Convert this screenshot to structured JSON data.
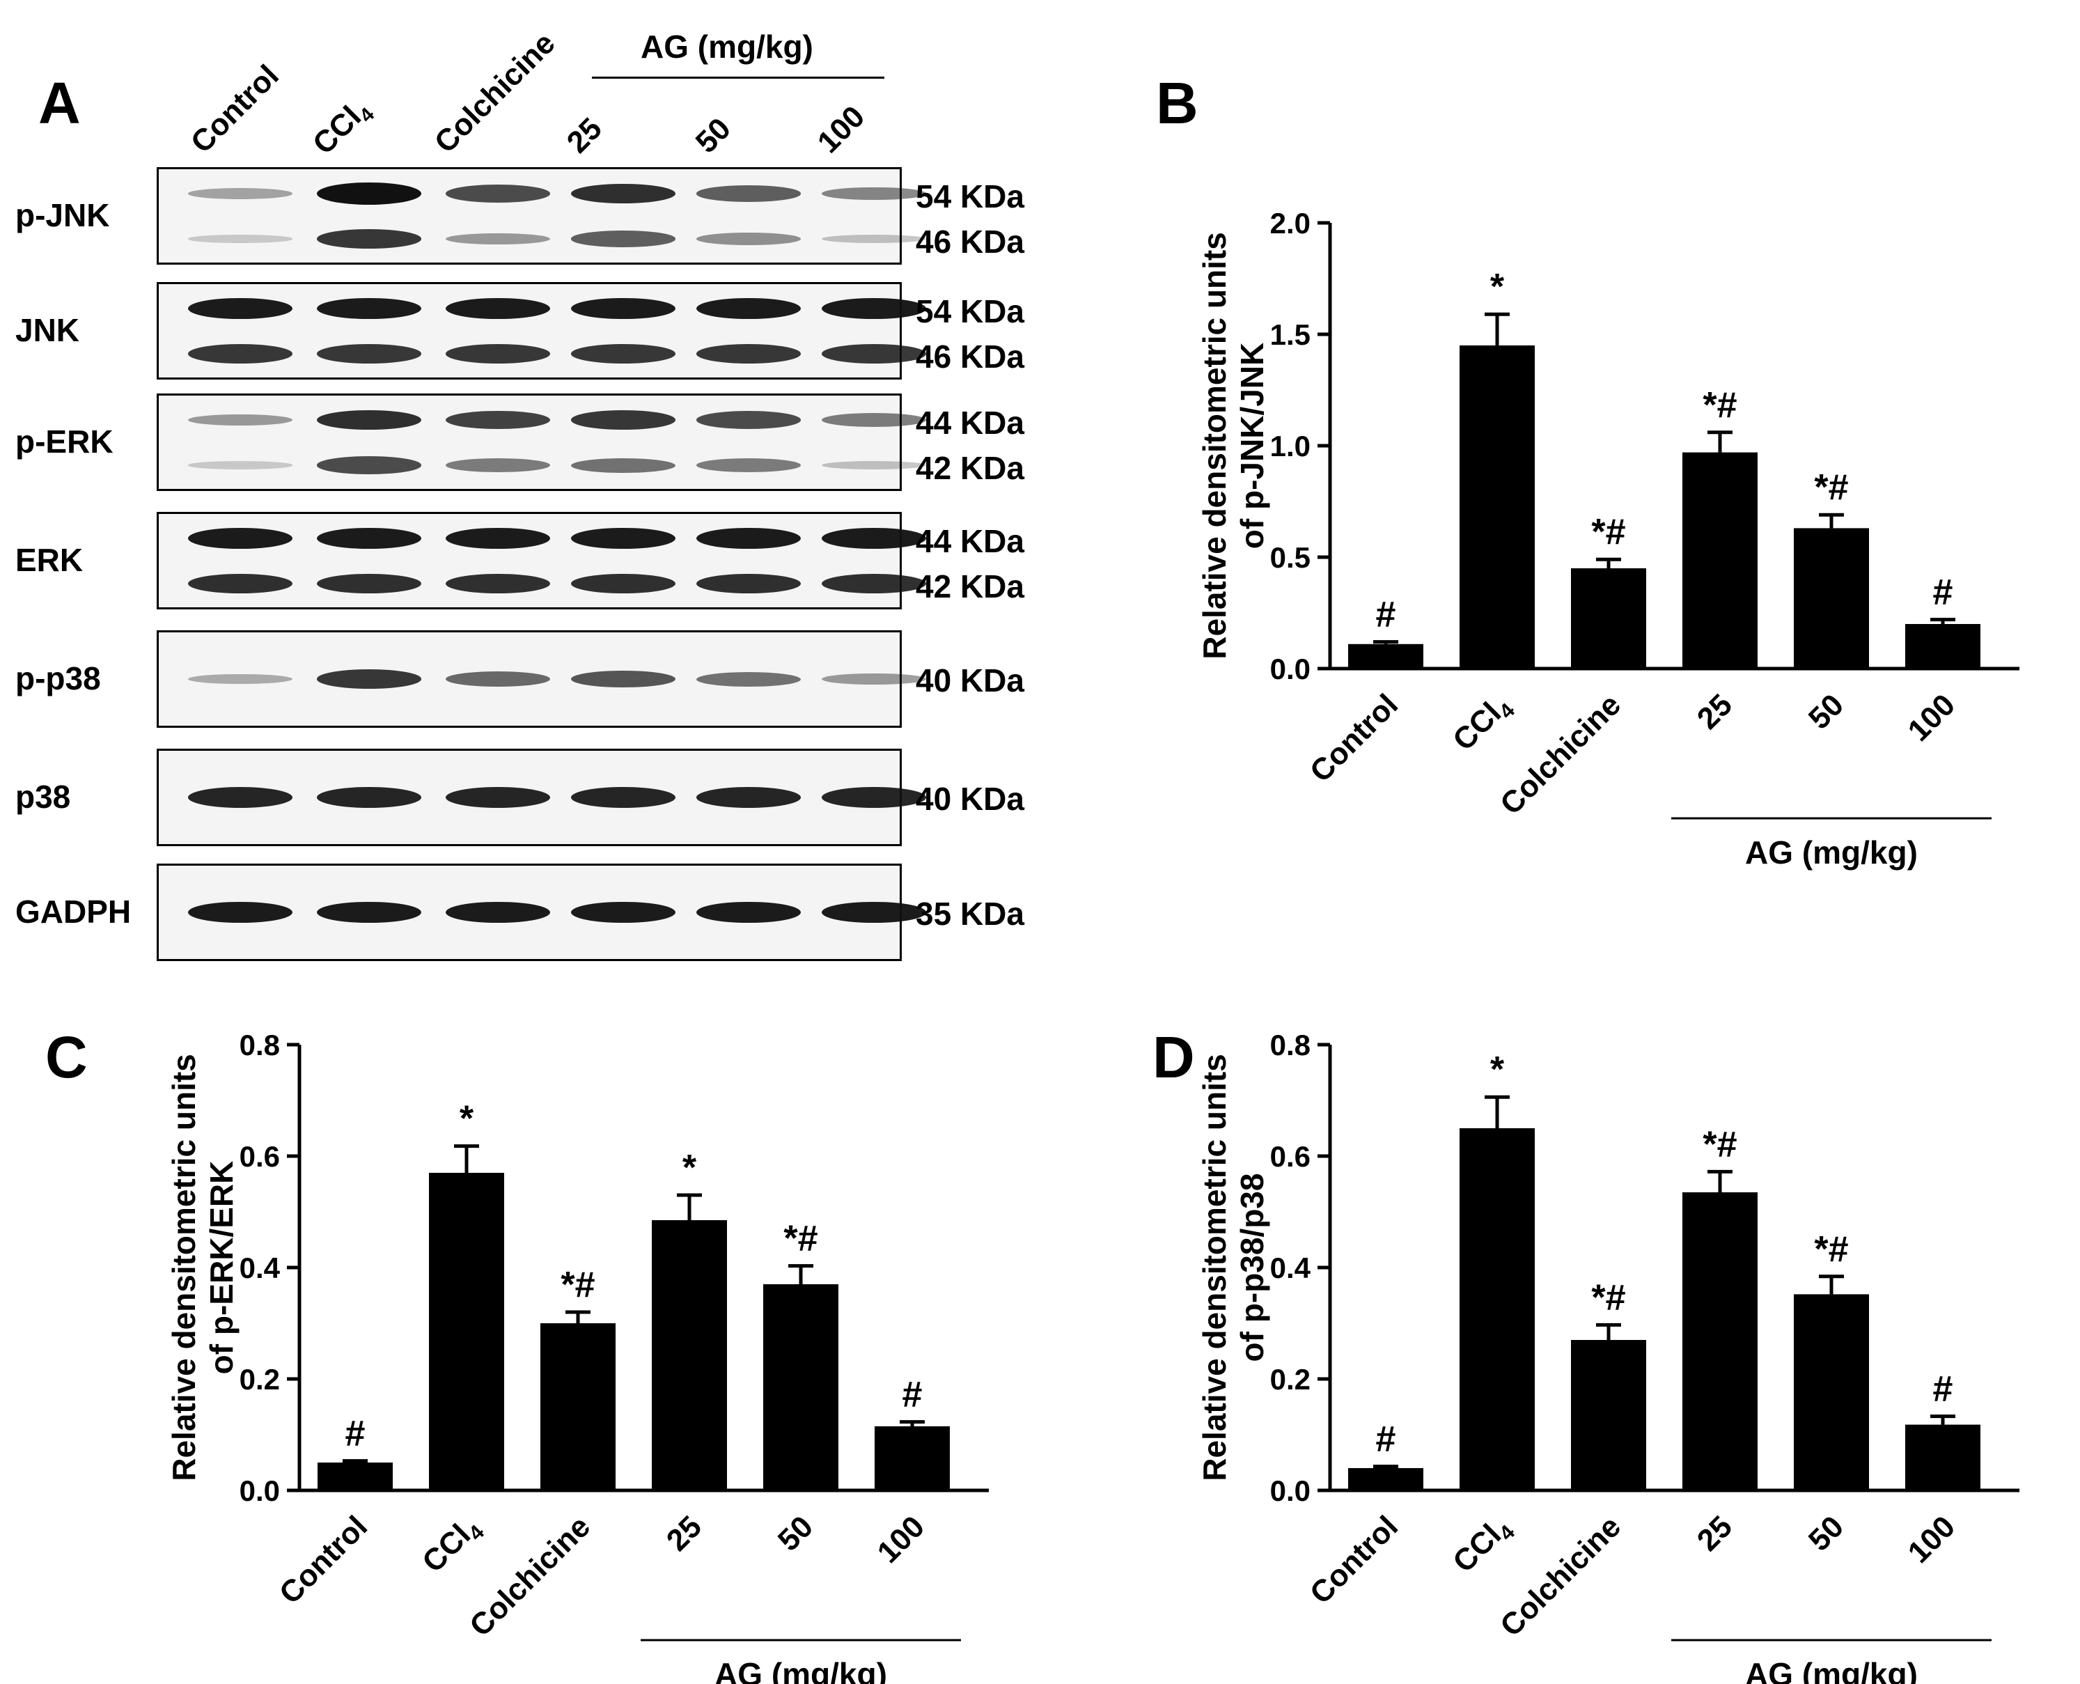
{
  "panel_labels": {
    "a": "A",
    "b": "B",
    "c": "C",
    "d": "D"
  },
  "western_blot": {
    "lanes": [
      "Control",
      "CCl4",
      "Colchicine",
      "25",
      "50",
      "100"
    ],
    "group_label": "AG (mg/kg)",
    "rows": [
      {
        "label": "p-JNK",
        "kda": [
          "54 KDa",
          "46 KDa"
        ],
        "intensity": [
          [
            0.25,
            1.0,
            0.7,
            0.85,
            0.6,
            0.4
          ],
          [
            0.05,
            0.8,
            0.3,
            0.6,
            0.35,
            0.1
          ]
        ]
      },
      {
        "label": "JNK",
        "kda": [
          "54 KDa",
          "46 KDa"
        ],
        "intensity": [
          [
            0.95,
            0.95,
            0.95,
            0.95,
            0.95,
            0.95
          ],
          [
            0.8,
            0.8,
            0.8,
            0.8,
            0.8,
            0.8
          ]
        ]
      },
      {
        "label": "p-ERK",
        "kda": [
          "44 KDa",
          "42 KDa"
        ],
        "intensity": [
          [
            0.3,
            0.85,
            0.75,
            0.8,
            0.7,
            0.45
          ],
          [
            0.05,
            0.7,
            0.45,
            0.5,
            0.45,
            0.1
          ]
        ]
      },
      {
        "label": "ERK",
        "kda": [
          "44 KDa",
          "42 KDa"
        ],
        "intensity": [
          [
            0.95,
            0.95,
            0.95,
            0.95,
            0.95,
            0.95
          ],
          [
            0.85,
            0.85,
            0.85,
            0.85,
            0.85,
            0.85
          ]
        ]
      },
      {
        "label": "p-p38",
        "kda": [
          "40 KDa"
        ],
        "intensity": [
          [
            0.2,
            0.8,
            0.55,
            0.65,
            0.5,
            0.3
          ]
        ]
      },
      {
        "label": "p38",
        "kda": [
          "40 KDa"
        ],
        "intensity": [
          [
            0.9,
            0.9,
            0.9,
            0.9,
            0.9,
            0.9
          ]
        ]
      },
      {
        "label": "GADPH",
        "kda": [
          "35 KDa"
        ],
        "intensity": [
          [
            0.95,
            0.95,
            0.95,
            0.95,
            0.95,
            0.95
          ]
        ]
      }
    ]
  },
  "chart_data": [
    {
      "panel": "B",
      "type": "bar",
      "categories": [
        "Control",
        "CCl4",
        "Colchicine",
        "25",
        "50",
        "100"
      ],
      "values": [
        0.11,
        1.45,
        0.45,
        0.97,
        0.63,
        0.2
      ],
      "errors": [
        0.01,
        0.14,
        0.04,
        0.09,
        0.06,
        0.02
      ],
      "annotations": [
        "#",
        "*",
        "*#",
        "*#",
        "*#",
        "#"
      ],
      "ylabel": [
        "Relative densitometric units",
        "of p-JNK/JNK"
      ],
      "ylim": [
        0,
        2.0
      ],
      "yticks": [
        "0.0",
        "0.5",
        "1.0",
        "1.5",
        "2.0"
      ],
      "group_label": "AG (mg/kg)"
    },
    {
      "panel": "C",
      "type": "bar",
      "categories": [
        "Control",
        "CCl4",
        "Colchicine",
        "25",
        "50",
        "100"
      ],
      "values": [
        0.05,
        0.57,
        0.3,
        0.485,
        0.37,
        0.115
      ],
      "errors": [
        0.003,
        0.048,
        0.02,
        0.045,
        0.033,
        0.008
      ],
      "annotations": [
        "#",
        "*",
        "*#",
        "*",
        "*#",
        "#"
      ],
      "ylabel": [
        "Relative densitometric units",
        "of p-ERK/ERK"
      ],
      "ylim": [
        0,
        0.8
      ],
      "yticks": [
        "0.0",
        "0.2",
        "0.4",
        "0.6",
        "0.8"
      ],
      "group_label": "AG (mg/kg)"
    },
    {
      "panel": "D",
      "type": "bar",
      "categories": [
        "Control",
        "CCl4",
        "Colchicine",
        "25",
        "50",
        "100"
      ],
      "values": [
        0.04,
        0.65,
        0.27,
        0.535,
        0.352,
        0.118
      ],
      "errors": [
        0.003,
        0.056,
        0.027,
        0.037,
        0.032,
        0.015
      ],
      "annotations": [
        "#",
        "*",
        "*#",
        "*#",
        "*#",
        "#"
      ],
      "ylabel": [
        "Relative densitometric units",
        "of p-p38/p38"
      ],
      "ylim": [
        0,
        0.8
      ],
      "yticks": [
        "0.0",
        "0.2",
        "0.4",
        "0.6",
        "0.8"
      ],
      "group_label": "AG (mg/kg)"
    }
  ]
}
